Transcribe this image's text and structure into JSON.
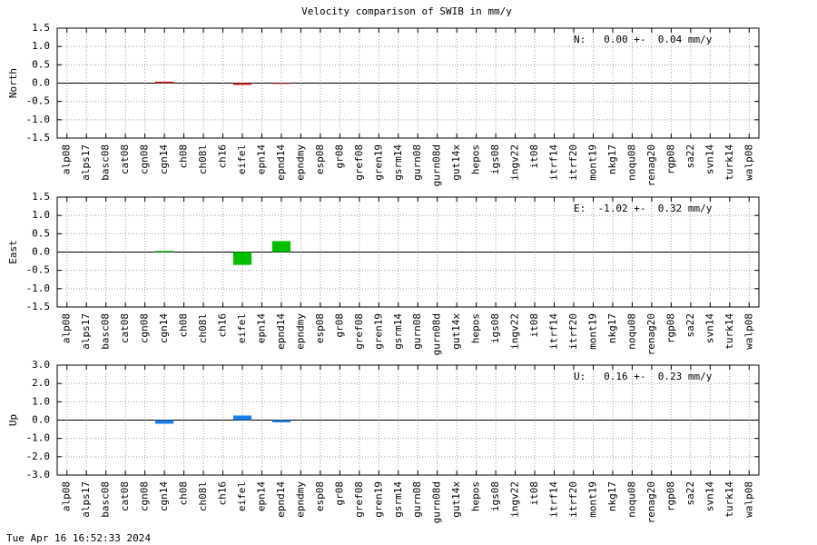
{
  "title": "Velocity comparison of SWIB in mm/y",
  "footer": "Tue Apr 16 16:52:33 2024",
  "chart_data": [
    {
      "type": "bar",
      "ylabel": "North",
      "annotation": "N:   0.00 +-  0.04 mm/y",
      "color": "#cc2020",
      "grid": true,
      "categories": [
        "alp08",
        "alps17",
        "basc08",
        "cat08",
        "cgn08",
        "cgn14",
        "ch08",
        "ch08l",
        "ch16",
        "eifel",
        "epn14",
        "epnd14",
        "epndmy",
        "esp08",
        "gr08",
        "gref08",
        "gren19",
        "gsrm14",
        "gurn08",
        "gurn08d",
        "gut14x",
        "hepos",
        "igs08",
        "ingv22",
        "it08",
        "itrf14",
        "itrf20",
        "mont19",
        "nkg17",
        "noqu08",
        "renag20",
        "rgp08",
        "sa22",
        "svn14",
        "turk14",
        "walp08"
      ],
      "values": [
        0,
        0,
        0,
        0,
        0,
        0.04,
        0,
        0,
        0,
        -0.05,
        0,
        -0.02,
        0,
        0,
        0,
        0,
        0,
        0,
        0,
        0,
        0,
        0,
        0,
        0,
        0,
        0,
        0,
        0,
        0,
        0,
        0,
        0,
        0,
        0,
        0,
        0
      ],
      "ylim": [
        -1.5,
        1.5
      ],
      "yticks": [
        -1.5,
        {
          "value": -1,
          "label": "-1.0"
        },
        -0.5,
        {
          "value": 0,
          "label": "0.0"
        },
        0.5,
        {
          "value": 1,
          "label": "1.0"
        },
        1.5
      ]
    },
    {
      "type": "bar",
      "ylabel": "East",
      "annotation": "E:  -1.02 +-  0.32 mm/y",
      "color": "#00c000",
      "grid": true,
      "categories": [
        "alp08",
        "alps17",
        "basc08",
        "cat08",
        "cgn08",
        "cgn14",
        "ch08",
        "ch08l",
        "ch16",
        "eifel",
        "epn14",
        "epnd14",
        "epndmy",
        "esp08",
        "gr08",
        "gref08",
        "gren19",
        "gsrm14",
        "gurn08",
        "gurn08d",
        "gut14x",
        "hepos",
        "igs08",
        "ingv22",
        "it08",
        "itrf14",
        "itrf20",
        "mont19",
        "nkg17",
        "noqu08",
        "renag20",
        "rgp08",
        "sa22",
        "svn14",
        "turk14",
        "walp08"
      ],
      "values": [
        0,
        0,
        0,
        0,
        0,
        0.03,
        0,
        0,
        0,
        -0.35,
        0,
        0.3,
        0,
        0,
        0,
        0,
        0,
        0,
        0,
        0,
        0,
        0,
        0,
        0,
        0,
        0,
        0,
        0,
        0,
        0,
        0,
        0,
        0,
        0,
        0,
        0
      ],
      "ylim": [
        -1.5,
        1.5
      ],
      "yticks": [
        -1.5,
        {
          "value": -1,
          "label": "-1.0"
        },
        -0.5,
        {
          "value": 0,
          "label": "0.0"
        },
        0.5,
        {
          "value": 1,
          "label": "1.0"
        },
        1.5
      ]
    },
    {
      "type": "bar",
      "ylabel": "Up",
      "annotation": "U:   0.16 +-  0.23 mm/y",
      "color": "#1a80e6",
      "grid": true,
      "categories": [
        "alp08",
        "alps17",
        "basc08",
        "cat08",
        "cgn08",
        "cgn14",
        "ch08",
        "ch08l",
        "ch16",
        "eifel",
        "epn14",
        "epnd14",
        "epndmy",
        "esp08",
        "gr08",
        "gref08",
        "gren19",
        "gsrm14",
        "gurn08",
        "gurn08d",
        "gut14x",
        "hepos",
        "igs08",
        "ingv22",
        "it08",
        "itrf14",
        "itrf20",
        "mont19",
        "nkg17",
        "noqu08",
        "renag20",
        "rgp08",
        "sa22",
        "svn14",
        "turk14",
        "walp08"
      ],
      "values": [
        0,
        0,
        0,
        0,
        0,
        -0.2,
        0,
        0,
        0,
        0.25,
        0,
        -0.12,
        0,
        0,
        0,
        0,
        0,
        0,
        0,
        0,
        0,
        0,
        0,
        0,
        0,
        0,
        0,
        0,
        0,
        0,
        0,
        0,
        0,
        0,
        0,
        0
      ],
      "ylim": [
        -3,
        3
      ],
      "yticks": [
        {
          "value": -3,
          "label": "-3.0"
        },
        {
          "value": -2,
          "label": "-2.0"
        },
        {
          "value": -1,
          "label": "-1.0"
        },
        {
          "value": 0,
          "label": "0.0"
        },
        {
          "value": 1,
          "label": "1.0"
        },
        {
          "value": 2,
          "label": "2.0"
        },
        {
          "value": 3,
          "label": "3.0"
        }
      ]
    }
  ]
}
